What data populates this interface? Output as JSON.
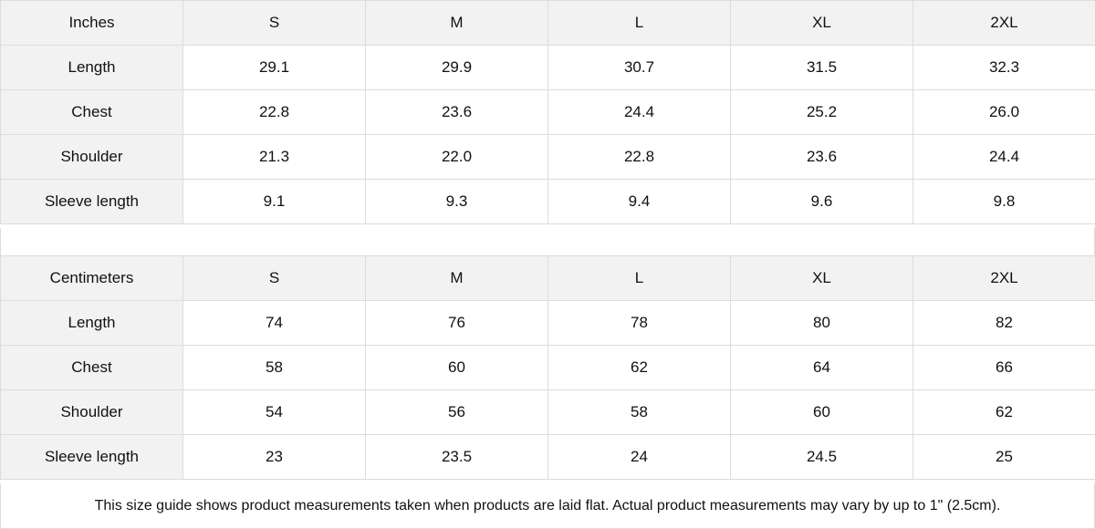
{
  "tables": [
    {
      "unit_label": "Inches",
      "sizes": [
        "S",
        "M",
        "L",
        "XL",
        "2XL"
      ],
      "rows": [
        {
          "label": "Length",
          "values": [
            "29.1",
            "29.9",
            "30.7",
            "31.5",
            "32.3"
          ]
        },
        {
          "label": "Chest",
          "values": [
            "22.8",
            "23.6",
            "24.4",
            "25.2",
            "26.0"
          ]
        },
        {
          "label": "Shoulder",
          "values": [
            "21.3",
            "22.0",
            "22.8",
            "23.6",
            "24.4"
          ]
        },
        {
          "label": "Sleeve length",
          "values": [
            "9.1",
            "9.3",
            "9.4",
            "9.6",
            "9.8"
          ]
        }
      ]
    },
    {
      "unit_label": "Centimeters",
      "sizes": [
        "S",
        "M",
        "L",
        "XL",
        "2XL"
      ],
      "rows": [
        {
          "label": "Length",
          "values": [
            "74",
            "76",
            "78",
            "80",
            "82"
          ]
        },
        {
          "label": "Chest",
          "values": [
            "58",
            "60",
            "62",
            "64",
            "66"
          ]
        },
        {
          "label": "Shoulder",
          "values": [
            "54",
            "56",
            "58",
            "60",
            "62"
          ]
        },
        {
          "label": "Sleeve length",
          "values": [
            "23",
            "23.5",
            "24",
            "24.5",
            "25"
          ]
        }
      ]
    }
  ],
  "colors": {
    "header_bg": "#f2f2f2",
    "border": "#dcdcdc"
  },
  "note": "This size guide shows product measurements taken when products are laid flat.  Actual product measurements may vary by up to 1\" (2.5cm)."
}
